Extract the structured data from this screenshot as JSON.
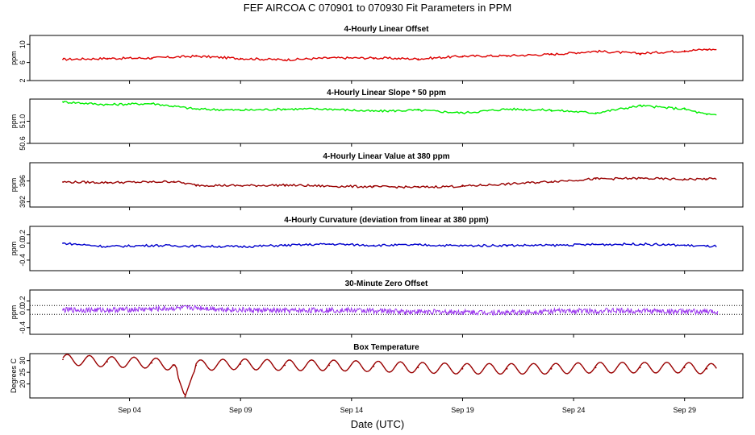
{
  "title": "FEF   AIRCOA C   070901 to 070930   Fit Parameters in PPM",
  "xlabel": "Date (UTC)",
  "colors": {
    "offset": "#dd0000",
    "slope": "#00ee00",
    "value": "#990000",
    "curvature": "#0000cc",
    "zero": "#9933ee",
    "temp": "#990000"
  },
  "chart_data": [
    {
      "type": "line",
      "title": "4-Hourly Linear Offset",
      "ylabel": "ppm",
      "ylim": [
        2,
        12
      ],
      "yticks": [
        2,
        6,
        10
      ],
      "ytick_labels": [
        "2",
        "6",
        "10"
      ],
      "x": [
        "Sep 01",
        "Sep 03",
        "Sep 05",
        "Sep 07",
        "Sep 09",
        "Sep 11",
        "Sep 13",
        "Sep 15",
        "Sep 17",
        "Sep 19",
        "Sep 21",
        "Sep 23",
        "Sep 25",
        "Sep 27",
        "Sep 29",
        "Sep 30"
      ],
      "values": [
        6.7,
        6.9,
        7.0,
        7.4,
        6.9,
        6.6,
        7.0,
        7.0,
        6.8,
        7.4,
        7.5,
        7.8,
        8.5,
        8.0,
        8.6,
        8.9
      ],
      "color_key": "offset"
    },
    {
      "type": "line",
      "title": "4-Hourly Linear Slope * 50 ppm",
      "ylabel": "ppm",
      "ylim": [
        50.6,
        51.4
      ],
      "yticks": [
        50.6,
        51.0
      ],
      "ytick_labels": [
        "50.6",
        "51.0"
      ],
      "x": [
        "Sep 01",
        "Sep 03",
        "Sep 05",
        "Sep 07",
        "Sep 09",
        "Sep 11",
        "Sep 13",
        "Sep 15",
        "Sep 17",
        "Sep 19",
        "Sep 21",
        "Sep 23",
        "Sep 25",
        "Sep 27",
        "Sep 29",
        "Sep 30"
      ],
      "values": [
        51.35,
        51.3,
        51.32,
        51.22,
        51.2,
        51.22,
        51.22,
        51.18,
        51.2,
        51.15,
        51.22,
        51.2,
        51.15,
        51.28,
        51.22,
        51.12
      ],
      "color_key": "slope"
    },
    {
      "type": "line",
      "title": "4-Hourly Linear Value at 380 ppm",
      "ylabel": "ppm",
      "ylim": [
        391,
        399.5
      ],
      "yticks": [
        392,
        396
      ],
      "ytick_labels": [
        "392",
        "396"
      ],
      "x": [
        "Sep 01",
        "Sep 03",
        "Sep 05",
        "Sep 06",
        "Sep 07",
        "Sep 09",
        "Sep 11",
        "Sep 13",
        "Sep 15",
        "Sep 17",
        "Sep 19",
        "Sep 21",
        "Sep 23",
        "Sep 25",
        "Sep 27",
        "Sep 29",
        "Sep 30"
      ],
      "values": [
        395.8,
        395.7,
        395.8,
        395.9,
        395.2,
        395.1,
        395.2,
        395.0,
        394.9,
        394.8,
        395.0,
        395.4,
        395.9,
        396.4,
        396.5,
        396.3,
        396.4
      ],
      "color_key": "value"
    },
    {
      "type": "line",
      "title": "4-Hourly Curvature (deviation from linear at 380 ppm)",
      "ylabel": "ppm",
      "ylim": [
        -0.65,
        0.4
      ],
      "yticks": [
        -0.4,
        0.0,
        0.2
      ],
      "ytick_labels": [
        "-0.4",
        "0.0",
        "0.2"
      ],
      "x": [
        "Sep 01",
        "Sep 03",
        "Sep 05",
        "Sep 07",
        "Sep 09",
        "Sep 11",
        "Sep 13",
        "Sep 15",
        "Sep 17",
        "Sep 19",
        "Sep 21",
        "Sep 23",
        "Sep 25",
        "Sep 27",
        "Sep 29",
        "Sep 30"
      ],
      "values": [
        0.0,
        -0.08,
        -0.05,
        -0.07,
        -0.08,
        -0.05,
        -0.02,
        -0.05,
        -0.04,
        -0.06,
        -0.05,
        -0.05,
        -0.03,
        -0.02,
        -0.05,
        -0.07
      ],
      "color_key": "curvature"
    },
    {
      "type": "line",
      "title": "30-Minute Zero Offset",
      "ylabel": "ppm",
      "ylim": [
        -0.55,
        0.45
      ],
      "yticks": [
        -0.4,
        0.0,
        0.2
      ],
      "ytick_labels": [
        "-0.4",
        "0.0",
        "0.2"
      ],
      "reference_lines": [
        0.1,
        -0.1
      ],
      "x": [
        "Sep 01",
        "Sep 03",
        "Sep 05",
        "Sep 07",
        "Sep 09",
        "Sep 11",
        "Sep 13",
        "Sep 15",
        "Sep 17",
        "Sep 19",
        "Sep 21",
        "Sep 23",
        "Sep 25",
        "Sep 27",
        "Sep 29",
        "Sep 30"
      ],
      "values": [
        0.0,
        0.0,
        0.02,
        0.05,
        0.0,
        -0.02,
        0.0,
        -0.02,
        -0.04,
        -0.05,
        -0.06,
        -0.03,
        -0.02,
        -0.02,
        -0.04,
        -0.04
      ],
      "color_key": "zero"
    },
    {
      "type": "line",
      "title": "Box Temperature",
      "ylabel": "Degrees C",
      "ylim": [
        14,
        33
      ],
      "yticks": [
        20,
        25,
        30
      ],
      "ytick_labels": [
        "20",
        "25",
        "30"
      ],
      "x": [
        "Sep 01",
        "Sep 03",
        "Sep 05",
        "Sep 06",
        "Sep 06.5",
        "Sep 07",
        "Sep 09",
        "Sep 11",
        "Sep 13",
        "Sep 15",
        "Sep 17",
        "Sep 19",
        "Sep 21",
        "Sep 23",
        "Sep 25",
        "Sep 27",
        "Sep 29",
        "Sep 30"
      ],
      "values": [
        30.5,
        29.5,
        29.0,
        28.0,
        14.5,
        28.0,
        28.5,
        28.0,
        28.0,
        27.5,
        27.0,
        26.5,
        26.5,
        26.5,
        27.0,
        27.0,
        27.0,
        26.5
      ],
      "color_key": "temp"
    }
  ],
  "x_axis": {
    "ticks": [
      "Sep 04",
      "Sep 09",
      "Sep 14",
      "Sep 19",
      "Sep 24",
      "Sep 29"
    ]
  }
}
